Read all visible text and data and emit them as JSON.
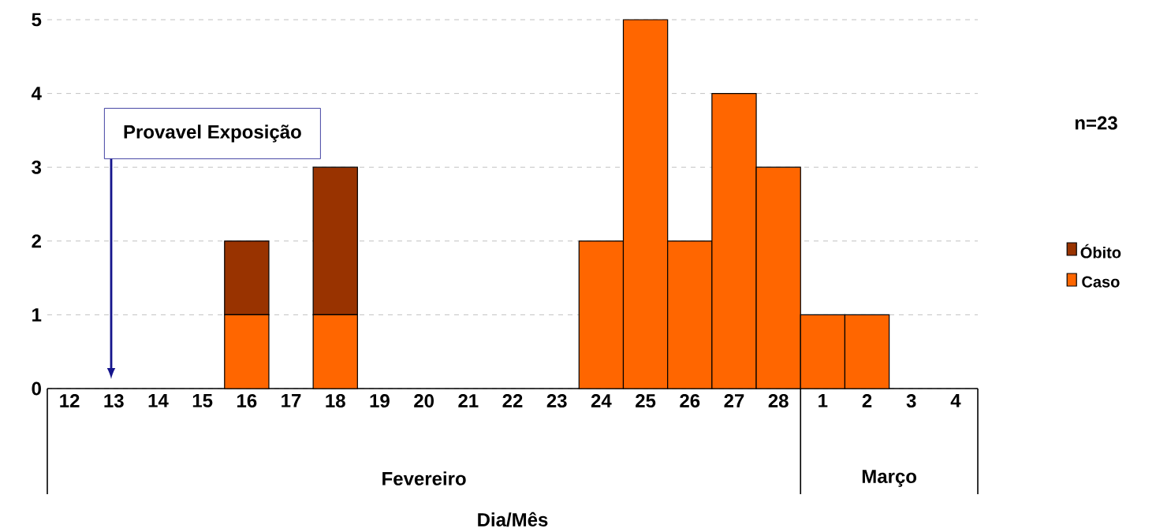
{
  "chart_data": {
    "type": "bar",
    "stacked": true,
    "categories": [
      "12",
      "13",
      "14",
      "15",
      "16",
      "17",
      "18",
      "19",
      "20",
      "21",
      "22",
      "23",
      "24",
      "25",
      "26",
      "27",
      "28",
      "1",
      "2",
      "3",
      "4"
    ],
    "series": [
      {
        "name": "Caso",
        "color": "#ff6600",
        "values": [
          0,
          0,
          0,
          0,
          1,
          0,
          1,
          0,
          0,
          0,
          0,
          0,
          2,
          5,
          2,
          4,
          3,
          1,
          1,
          0,
          0
        ]
      },
      {
        "name": "Óbito",
        "color": "#993300",
        "values": [
          0,
          0,
          0,
          0,
          1,
          0,
          2,
          0,
          0,
          0,
          0,
          0,
          0,
          0,
          0,
          0,
          0,
          0,
          0,
          0,
          0
        ]
      }
    ],
    "ylim": [
      0,
      5
    ],
    "yticks": [
      0,
      1,
      2,
      3,
      4,
      5
    ],
    "grid": "y",
    "legend": "right",
    "annotations": [
      "Provavel Exposição",
      "n=23",
      "Fevereiro",
      "Março",
      "Dia/Mês"
    ]
  }
}
